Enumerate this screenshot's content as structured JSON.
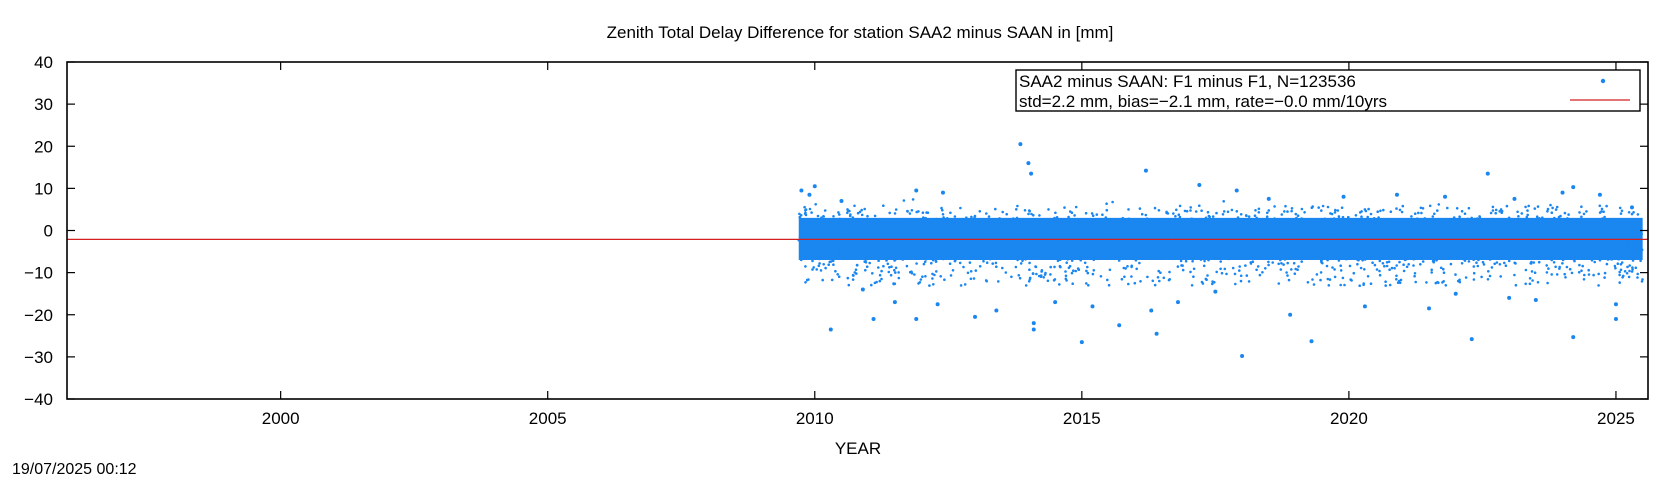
{
  "chart_data": {
    "type": "scatter",
    "title": "Zenith Total Delay Difference for station SAA2 minus SAAN in [mm]",
    "xlabel": "YEAR",
    "ylabel": "",
    "xlim": [
      1996.0,
      2025.6
    ],
    "ylim": [
      -40,
      40
    ],
    "x_ticks": [
      2000,
      2005,
      2010,
      2015,
      2020,
      2025
    ],
    "y_ticks": [
      -40,
      -30,
      -20,
      -10,
      0,
      10,
      20,
      30,
      40
    ],
    "grid": false,
    "legend": {
      "placement": "top-right",
      "entries": [
        {
          "label": "SAA2 minus SAAN: F1 minus F1, N=123536",
          "marker": "point",
          "color": "#1a86f0"
        },
        {
          "label": "std=2.2 mm, bias=−2.1 mm, rate=−0.0 mm/10yrs",
          "marker": "line",
          "color": "#d42020"
        }
      ]
    },
    "series": [
      {
        "name": "SAA2 minus SAAN: F1 minus F1, N=123536",
        "kind": "points",
        "color": "#1a86f0",
        "x_range": [
          2009.7,
          2025.5
        ],
        "core_range": [
          -7,
          3
        ],
        "outliers": [
          {
            "x": 2009.75,
            "y": 9.5
          },
          {
            "x": 2009.9,
            "y": 8.5
          },
          {
            "x": 2010.0,
            "y": 10.5
          },
          {
            "x": 2010.3,
            "y": -23.5
          },
          {
            "x": 2010.5,
            "y": 7.0
          },
          {
            "x": 2010.9,
            "y": -14.0
          },
          {
            "x": 2011.1,
            "y": -21.0
          },
          {
            "x": 2011.5,
            "y": -17.0
          },
          {
            "x": 2011.9,
            "y": 9.5
          },
          {
            "x": 2011.9,
            "y": -21.0
          },
          {
            "x": 2012.3,
            "y": -17.5
          },
          {
            "x": 2012.4,
            "y": 9.0
          },
          {
            "x": 2013.0,
            "y": -20.5
          },
          {
            "x": 2013.4,
            "y": -19.0
          },
          {
            "x": 2013.85,
            "y": 20.5
          },
          {
            "x": 2014.0,
            "y": 16.0
          },
          {
            "x": 2014.05,
            "y": 13.5
          },
          {
            "x": 2014.1,
            "y": -22.0
          },
          {
            "x": 2014.1,
            "y": -23.5
          },
          {
            "x": 2014.5,
            "y": -17.0
          },
          {
            "x": 2015.0,
            "y": -26.5
          },
          {
            "x": 2015.2,
            "y": -18.0
          },
          {
            "x": 2015.7,
            "y": -22.5
          },
          {
            "x": 2016.2,
            "y": 14.2
          },
          {
            "x": 2016.3,
            "y": -19.0
          },
          {
            "x": 2016.4,
            "y": -24.5
          },
          {
            "x": 2016.8,
            "y": -17.0
          },
          {
            "x": 2017.2,
            "y": 10.8
          },
          {
            "x": 2017.5,
            "y": -14.5
          },
          {
            "x": 2017.9,
            "y": 9.5
          },
          {
            "x": 2018.0,
            "y": -29.8
          },
          {
            "x": 2018.5,
            "y": 7.5
          },
          {
            "x": 2018.9,
            "y": -20.0
          },
          {
            "x": 2019.3,
            "y": -26.3
          },
          {
            "x": 2019.9,
            "y": 8.0
          },
          {
            "x": 2020.3,
            "y": -18.0
          },
          {
            "x": 2020.9,
            "y": 8.5
          },
          {
            "x": 2021.5,
            "y": -18.5
          },
          {
            "x": 2021.8,
            "y": 8.0
          },
          {
            "x": 2022.0,
            "y": -15.0
          },
          {
            "x": 2022.3,
            "y": -25.8
          },
          {
            "x": 2022.6,
            "y": 13.5
          },
          {
            "x": 2023.0,
            "y": -16.0
          },
          {
            "x": 2023.1,
            "y": 7.5
          },
          {
            "x": 2023.5,
            "y": -16.5
          },
          {
            "x": 2024.0,
            "y": 9.0
          },
          {
            "x": 2024.2,
            "y": -25.3
          },
          {
            "x": 2024.2,
            "y": 10.3
          },
          {
            "x": 2024.7,
            "y": 8.5
          },
          {
            "x": 2025.0,
            "y": -17.5
          },
          {
            "x": 2025.0,
            "y": -21.0
          },
          {
            "x": 2025.3,
            "y": 5.5
          }
        ]
      },
      {
        "name": "std=2.2 mm, bias=−2.1 mm, rate=−0.0 mm/10yrs",
        "kind": "line",
        "color": "#d42020",
        "x": [
          1996.0,
          2025.6
        ],
        "y": [
          -2.1,
          -2.1
        ]
      }
    ]
  },
  "footer": {
    "timestamp": "19/07/2025 00:12"
  }
}
